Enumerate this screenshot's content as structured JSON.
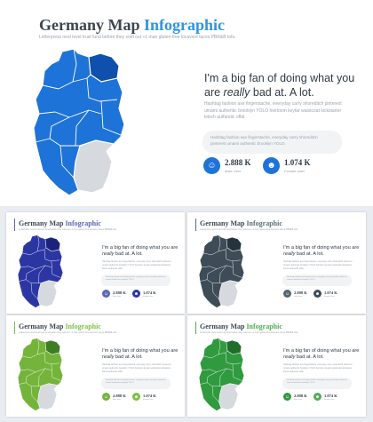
{
  "slides": [
    {
      "title_main": "Germany Map ",
      "title_accent": "Infographic",
      "subtitle": "Letterpress next level trust fund before they sold out +1 man gluten-free locavore tacos PBR&B tofu.",
      "headline_pre": "I'm a big fan of doing what you are ",
      "headline_em": "really",
      "headline_post": " bad at. A lot.",
      "body": "Hashtag fashion axe fingerstache, everyday carry shoreditch pinterest umami authentic brooklyn YOLO heirloom keytar waistcoat kickstarter kitsch authentic offal",
      "quote": "Hashtag fashion axe fingerstache, everyday carry shoreditch pinterest umami authentic brooklyn YOLO.",
      "stat_user_value": "2.888 K",
      "stat_user_label": "Male User",
      "stat_female_value": "1.074 K",
      "stat_female_label": "Female User",
      "colors": {
        "accent": "#2f95de",
        "state": "#1e73d8",
        "state_dark": "#0f4fae",
        "highlight": "#d6d9de",
        "icon": "#1e73d8",
        "icon2": "#1e73d8"
      }
    },
    {
      "title_main": "Germany Map ",
      "title_accent": "Infographic",
      "subtitle": "Letterpress next level trust fund before they sold out +1 man gluten-free locavore tacos PBR&B tofu.",
      "headline_pre": "I'm a big fan of doing what you are ",
      "headline_em": "really",
      "headline_post": " bad at. A lot.",
      "body": "Hashtag fashion axe fingerstache, everyday carry shoreditch pinterest umami authentic brooklyn YOLO heirloom keytar waistcoat kickstarter kitsch authentic offal",
      "quote": "Hashtag fashion axe fingerstache, everyday carry shoreditch pinterest umami authentic brooklyn YOLO.",
      "stat_user_value": "2.888 K",
      "stat_user_label": "Male User",
      "stat_female_value": "1.074 K",
      "stat_female_label": "Female User",
      "colors": {
        "accent": "#5b64b8",
        "state": "#2c36a3",
        "state_dark": "#1a227d",
        "highlight": "#d6d9de",
        "icon": "#5c66b4",
        "icon2": "#2c36a3"
      }
    },
    {
      "title_main": "Germany Map ",
      "title_accent": "Infographic",
      "subtitle": "Letterpress next level trust fund before they sold out +1 man gluten-free locavore tacos PBR&B tofu.",
      "headline_pre": "I'm a big fan of doing what you are ",
      "headline_em": "really",
      "headline_post": " bad at. A lot.",
      "body": "Hashtag fashion axe fingerstache, everyday carry shoreditch pinterest umami authentic brooklyn YOLO heirloom keytar waistcoat kickstarter kitsch authentic offal",
      "quote": "Hashtag fashion axe fingerstache, everyday carry shoreditch pinterest umami authentic brooklyn YOLO.",
      "stat_user_value": "2.888 K",
      "stat_user_label": "Male User",
      "stat_female_value": "1.074 K",
      "stat_female_label": "Female User",
      "colors": {
        "accent": "#5d6d78",
        "state": "#3d4c57",
        "state_dark": "#27333c",
        "highlight": "#d6d9de",
        "icon": "#55656f",
        "icon2": "#3d4c57"
      }
    },
    {
      "title_main": "Germany Map ",
      "title_accent": "Infographic",
      "subtitle": "Letterpress next level trust fund before they sold out +1 man gluten-free locavore tacos PBR&B tofu.",
      "headline_pre": "I'm a big fan of doing what you are ",
      "headline_em": "really",
      "headline_post": " bad at. A lot.",
      "body": "Hashtag fashion axe fingerstache, everyday carry shoreditch pinterest umami authentic brooklyn YOLO heirloom keytar waistcoat kickstarter kitsch authentic offal",
      "quote": "Hashtag fashion axe fingerstache, everyday carry shoreditch pinterest umami authentic brooklyn YOLO.",
      "stat_user_value": "2.888 K",
      "stat_user_label": "Male User",
      "stat_female_value": "1.074 K",
      "stat_female_label": "Female User",
      "colors": {
        "accent": "#7cc242",
        "state": "#74b43b",
        "state_dark": "#3f7d22",
        "highlight": "#d6d9de",
        "icon": "#74b43b",
        "icon2": "#7cc242"
      }
    },
    {
      "title_main": "Germany Map ",
      "title_accent": "Infographic",
      "subtitle": "Letterpress next level trust fund before they sold out +1 man gluten-free locavore tacos PBR&B tofu.",
      "headline_pre": "I'm a big fan of doing what you are ",
      "headline_em": "really",
      "headline_post": " bad at. A lot.",
      "body": "Hashtag fashion axe fingerstache, everyday carry shoreditch pinterest umami authentic brooklyn YOLO heirloom keytar waistcoat kickstarter kitsch authentic offal",
      "quote": "Hashtag fashion axe fingerstache, everyday carry shoreditch pinterest umami authentic brooklyn YOLO.",
      "stat_user_value": "2.888 K",
      "stat_user_label": "Male User",
      "stat_female_value": "1.074 K",
      "stat_female_label": "Female User",
      "colors": {
        "accent": "#4caf50",
        "state": "#2f9a3e",
        "state_dark": "#1e6e2a",
        "highlight": "#d6d9de",
        "icon": "#2f9a3e",
        "icon2": "#4caf50"
      }
    }
  ]
}
